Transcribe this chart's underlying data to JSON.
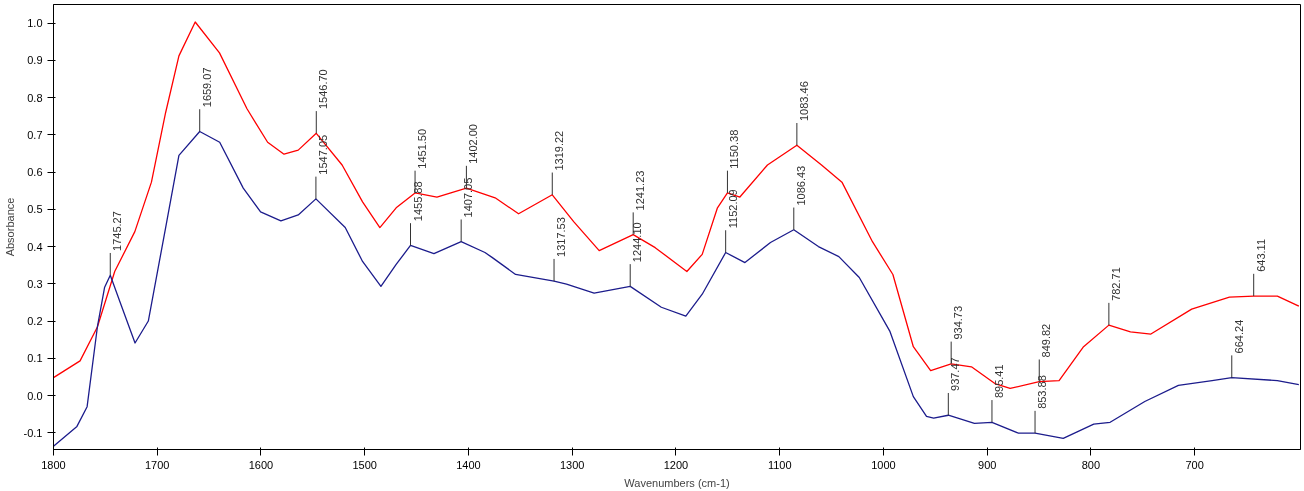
{
  "chart_data": {
    "type": "line",
    "xlabel": "Wavenumbers (cm-1)",
    "ylabel": "Absorbance",
    "xlim": [
      1800,
      598
    ],
    "ylim": [
      -0.145,
      1.05
    ],
    "xticks": [
      1800,
      1700,
      1600,
      1500,
      1400,
      1300,
      1200,
      1100,
      1000,
      900,
      800,
      700
    ],
    "yticks": [
      {
        "value": -0.1,
        "label": "-0.1"
      },
      {
        "value": 0,
        "label": "0.0"
      },
      0.1,
      0.2,
      0.3,
      0.4,
      0.5,
      0.6,
      0.7,
      0.8,
      0.9,
      {
        "value": 1,
        "label": "1.0"
      }
    ],
    "grid": false,
    "marker": "none",
    "line_style": "solid",
    "series": [
      {
        "color": "#ff0000",
        "x": [
          1800,
          1774.4,
          1757.7,
          1741.0,
          1721.6,
          1705.6,
          1691.9,
          1679.1,
          1663.4,
          1640.0,
          1613.5,
          1593.6,
          1577.8,
          1564.1,
          1546.7,
          1521.8,
          1502.1,
          1485.4,
          1469.7,
          1451.5,
          1430.4,
          1402.0,
          1374.3,
          1351.7,
          1319.22,
          1298.6,
          1274,
          1241.23,
          1220,
          1189.5,
          1174.7,
          1160,
          1150.38,
          1138.4,
          1111.8,
          1083.46,
          1059.7,
          1040,
          1010.6,
          990.9,
          971.2,
          954.5,
          934.73,
          915.2,
          892.6,
          877.9,
          849.82,
          830.7,
          807.1,
          782.71,
          761.9,
          742.2,
          702.9,
          666.5,
          643.11,
          620.3,
          599.6
        ],
        "values": [
          0.048,
          0.093,
          0.184,
          0.333,
          0.44,
          0.573,
          0.76,
          0.912,
          1.003,
          0.92,
          0.77,
          0.68,
          0.648,
          0.659,
          0.704,
          0.619,
          0.52,
          0.451,
          0.504,
          0.544,
          0.533,
          0.557,
          0.531,
          0.488,
          0.539,
          0.467,
          0.389,
          0.432,
          0.397,
          0.333,
          0.379,
          0.504,
          0.544,
          0.533,
          0.619,
          0.672,
          0.619,
          0.573,
          0.413,
          0.325,
          0.131,
          0.067,
          0.085,
          0.077,
          0.032,
          0.019,
          0.037,
          0.04,
          0.131,
          0.189,
          0.171,
          0.165,
          0.232,
          0.264,
          0.267,
          0.267,
          0.24
        ]
      },
      {
        "color": "#1c1c8c",
        "x": [
          1800,
          1777.4,
          1767.6,
          1757.7,
          1750.8,
          1745.27,
          1735.1,
          1721.4,
          1708.6,
          1691.9,
          1679.1,
          1659.07,
          1639.8,
          1617.1,
          1600.4,
          1580.8,
          1564.1,
          1547.05,
          1518.8,
          1502.1,
          1484.4,
          1469.7,
          1455.88,
          1433.3,
          1407.05,
          1384.1,
          1377.3,
          1354.6,
          1317.53,
          1305.5,
          1278.9,
          1244.1,
          1214.1,
          1190.5,
          1174.7,
          1152.09,
          1133.5,
          1108.9,
          1086.43,
          1062.7,
          1043,
          1023.3,
          993.9,
          971.2,
          958.5,
          951.6,
          937.47,
          912.3,
          895.41,
          870,
          853.88,
          826.7,
          797.3,
          781.5,
          748.1,
          715.7,
          683.2,
          664.24,
          620.3,
          599.6
        ],
        "values": [
          -0.136,
          -0.083,
          -0.03,
          0.184,
          0.29,
          0.323,
          0.245,
          0.141,
          0.2,
          0.451,
          0.645,
          0.709,
          0.68,
          0.557,
          0.493,
          0.469,
          0.485,
          0.528,
          0.451,
          0.36,
          0.293,
          0.352,
          0.403,
          0.381,
          0.413,
          0.384,
          0.371,
          0.325,
          0.307,
          0.299,
          0.275,
          0.293,
          0.237,
          0.213,
          0.272,
          0.384,
          0.357,
          0.411,
          0.445,
          0.4,
          0.373,
          0.317,
          0.173,
          -0.003,
          -0.056,
          -0.061,
          -0.053,
          -0.075,
          -0.072,
          -0.101,
          -0.101,
          -0.115,
          -0.077,
          -0.072,
          -0.016,
          0.027,
          0.04,
          0.048,
          0.04,
          0.029
        ]
      }
    ],
    "annotations": [
      {
        "text": "1745.27",
        "x": 1745.27,
        "y": 0.323
      },
      {
        "text": "1659.07",
        "x": 1659.07,
        "y": 0.709
      },
      {
        "text": "1546.70",
        "x": 1546.7,
        "y": 0.704
      },
      {
        "text": "1547.05",
        "x": 1547.05,
        "y": 0.528
      },
      {
        "text": "1451.50",
        "x": 1451.5,
        "y": 0.544
      },
      {
        "text": "1455.88",
        "x": 1455.88,
        "y": 0.403
      },
      {
        "text": "1402.00",
        "x": 1402.0,
        "y": 0.557
      },
      {
        "text": "1407.05",
        "x": 1407.05,
        "y": 0.413
      },
      {
        "text": "1319.22",
        "x": 1319.22,
        "y": 0.539
      },
      {
        "text": "1317.53",
        "x": 1317.53,
        "y": 0.307
      },
      {
        "text": "1241.23",
        "x": 1241.23,
        "y": 0.432
      },
      {
        "text": "1244.10",
        "x": 1244.1,
        "y": 0.293
      },
      {
        "text": "1150.38",
        "x": 1150.38,
        "y": 0.544
      },
      {
        "text": "1152.09",
        "x": 1152.09,
        "y": 0.384
      },
      {
        "text": "1083.46",
        "x": 1083.46,
        "y": 0.672
      },
      {
        "text": "1086.43",
        "x": 1086.43,
        "y": 0.445
      },
      {
        "text": "934.73",
        "x": 934.73,
        "y": 0.085
      },
      {
        "text": "937.47",
        "x": 937.47,
        "y": -0.053
      },
      {
        "text": "895.41",
        "x": 895.41,
        "y": -0.072
      },
      {
        "text": "849.82",
        "x": 849.82,
        "y": 0.037
      },
      {
        "text": "853.88",
        "x": 853.88,
        "y": -0.101
      },
      {
        "text": "782.71",
        "x": 782.71,
        "y": 0.189
      },
      {
        "text": "643.11",
        "x": 643.11,
        "y": 0.267
      },
      {
        "text": "664.24",
        "x": 664.24,
        "y": 0.048
      }
    ]
  }
}
